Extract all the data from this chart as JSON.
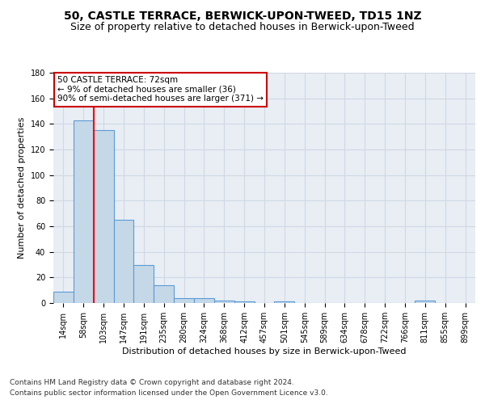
{
  "title": "50, CASTLE TERRACE, BERWICK-UPON-TWEED, TD15 1NZ",
  "subtitle": "Size of property relative to detached houses in Berwick-upon-Tweed",
  "xlabel": "Distribution of detached houses by size in Berwick-upon-Tweed",
  "ylabel": "Number of detached properties",
  "footnote1": "Contains HM Land Registry data © Crown copyright and database right 2024.",
  "footnote2": "Contains public sector information licensed under the Open Government Licence v3.0.",
  "bar_labels": [
    "14sqm",
    "58sqm",
    "103sqm",
    "147sqm",
    "191sqm",
    "235sqm",
    "280sqm",
    "324sqm",
    "368sqm",
    "412sqm",
    "457sqm",
    "501sqm",
    "545sqm",
    "589sqm",
    "634sqm",
    "678sqm",
    "722sqm",
    "766sqm",
    "811sqm",
    "855sqm",
    "899sqm"
  ],
  "bar_values": [
    9,
    143,
    135,
    65,
    30,
    14,
    4,
    4,
    2,
    1,
    0,
    1,
    0,
    0,
    0,
    0,
    0,
    0,
    2,
    0,
    0
  ],
  "bar_color": "#c5d8e8",
  "bar_edge_color": "#5b9bd5",
  "grid_color": "#d0d8e4",
  "bg_color": "#e8eef4",
  "ylim": [
    0,
    180
  ],
  "yticks": [
    0,
    20,
    40,
    60,
    80,
    100,
    120,
    140,
    160,
    180
  ],
  "property_label": "50 CASTLE TERRACE: 72sqm",
  "pct_smaller": "9% of detached houses are smaller (36)",
  "pct_larger": "90% of semi-detached houses are larger (371)",
  "red_line_x": 1.5,
  "annotation_box_color": "#ffffff",
  "annotation_border_color": "#cc0000",
  "title_fontsize": 10,
  "subtitle_fontsize": 9,
  "axis_label_fontsize": 8,
  "tick_fontsize": 7,
  "annotation_fontsize": 7.5,
  "footnote_fontsize": 6.5
}
